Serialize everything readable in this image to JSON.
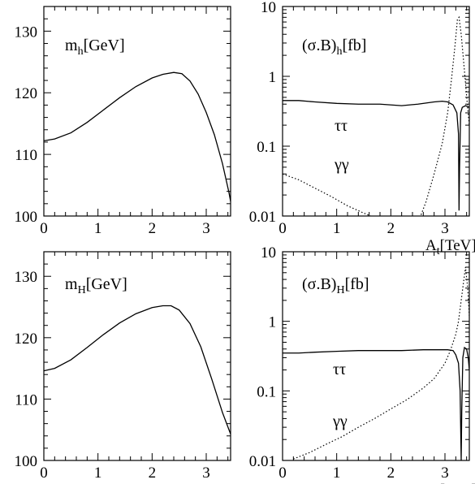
{
  "chart_data": [
    {
      "panel": "top-left",
      "type": "line",
      "title_parts": {
        "base": "m",
        "sub": "h",
        "tail": "[GeV]"
      },
      "xlim": [
        0,
        3.45
      ],
      "ylim": [
        100,
        134
      ],
      "xticks": [
        0,
        1,
        2,
        3
      ],
      "yticks": [
        100,
        110,
        120,
        130
      ],
      "xlabel": "",
      "series": [
        {
          "style": "solid",
          "x": [
            0,
            0.2,
            0.5,
            0.8,
            1.1,
            1.4,
            1.7,
            2.0,
            2.2,
            2.4,
            2.55,
            2.7,
            2.85,
            3.0,
            3.15,
            3.3,
            3.42,
            3.5
          ],
          "y": [
            112.2,
            112.5,
            113.5,
            115.2,
            117.2,
            119.2,
            121.0,
            122.4,
            123.0,
            123.3,
            123.1,
            121.9,
            119.8,
            116.8,
            113.2,
            108.5,
            103.8,
            100.0
          ]
        }
      ]
    },
    {
      "panel": "top-right",
      "type": "line",
      "title_parts": {
        "base": "(σ.B)",
        "sub": "h",
        "tail": "[fb]"
      },
      "scale": "log",
      "xlim": [
        0,
        3.45
      ],
      "ylim": [
        0.01,
        10
      ],
      "xticks": [
        0,
        1,
        2,
        3
      ],
      "yticks": [
        0.01,
        0.1,
        1,
        10
      ],
      "ytick_labels": [
        "0.01",
        "0.1",
        "1",
        "10"
      ],
      "xlabel_parts": {
        "base": "A",
        "sub": "t",
        "tail": "[TeV]"
      },
      "series_labels": [
        "ττ",
        "γγ"
      ],
      "series": [
        {
          "style": "solid",
          "x": [
            0,
            0.3,
            0.6,
            1.0,
            1.4,
            1.8,
            2.2,
            2.5,
            2.8,
            2.95,
            3.05,
            3.15,
            3.22,
            3.25,
            3.26,
            3.27,
            3.29,
            3.32,
            3.38,
            3.45
          ],
          "y": [
            0.45,
            0.45,
            0.43,
            0.41,
            0.4,
            0.4,
            0.38,
            0.4,
            0.43,
            0.44,
            0.43,
            0.39,
            0.3,
            0.15,
            0.012,
            0.05,
            0.3,
            0.36,
            0.38,
            0.36
          ]
        },
        {
          "style": "dotted",
          "x": [
            0,
            0.3,
            0.6,
            0.9,
            1.2,
            1.5,
            1.7,
            2.2,
            2.55,
            2.65,
            2.8,
            2.95,
            3.05,
            3.12,
            3.18,
            3.23,
            3.26,
            3.3,
            3.34,
            3.38,
            3.42,
            3.45
          ],
          "y": [
            0.04,
            0.033,
            0.025,
            0.019,
            0.014,
            0.011,
            0.0095,
            0.0095,
            0.01,
            0.016,
            0.04,
            0.11,
            0.3,
            0.9,
            2.5,
            6.5,
            7.0,
            4.0,
            1.8,
            0.8,
            0.35,
            0.2
          ]
        }
      ]
    },
    {
      "panel": "bottom-left",
      "type": "line",
      "title_parts": {
        "base": "m",
        "sub": "H",
        "tail": "[GeV]"
      },
      "xlim": [
        0,
        3.45
      ],
      "ylim": [
        100,
        134
      ],
      "xticks": [
        0,
        1,
        2,
        3
      ],
      "yticks": [
        100,
        110,
        120,
        130
      ],
      "xlabel": "",
      "series": [
        {
          "style": "solid",
          "x": [
            0,
            0.2,
            0.5,
            0.8,
            1.1,
            1.4,
            1.7,
            2.0,
            2.2,
            2.35,
            2.5,
            2.7,
            2.9,
            3.1,
            3.3,
            3.45
          ],
          "y": [
            114.6,
            115.0,
            116.4,
            118.4,
            120.5,
            122.4,
            123.9,
            124.9,
            125.2,
            125.2,
            124.5,
            122.3,
            118.5,
            113.3,
            107.8,
            104.3
          ]
        }
      ]
    },
    {
      "panel": "bottom-right",
      "type": "line",
      "title_parts": {
        "base": "(σ.B)",
        "sub": "H",
        "tail": "[fb]"
      },
      "scale": "log",
      "xlim": [
        0,
        3.45
      ],
      "ylim": [
        0.01,
        10
      ],
      "xticks": [
        0,
        1,
        2,
        3
      ],
      "yticks": [
        0.01,
        0.1,
        1,
        10
      ],
      "ytick_labels": [
        "0.01",
        "0.1",
        "1",
        "10"
      ],
      "xlabel_parts": {
        "base": "A",
        "sub": "t",
        "tail": "[TeV]"
      },
      "series_labels": [
        "ττ",
        "γγ"
      ],
      "series": [
        {
          "style": "solid",
          "x": [
            0,
            0.3,
            0.6,
            1.0,
            1.4,
            1.8,
            2.2,
            2.6,
            2.9,
            3.05,
            3.15,
            3.2,
            3.25,
            3.28,
            3.3,
            3.31,
            3.33,
            3.36,
            3.4,
            3.43,
            3.45
          ],
          "y": [
            0.35,
            0.35,
            0.36,
            0.37,
            0.38,
            0.38,
            0.38,
            0.39,
            0.39,
            0.39,
            0.38,
            0.33,
            0.25,
            0.1,
            0.01,
            0.05,
            0.3,
            0.42,
            0.4,
            0.3,
            0.2
          ]
        },
        {
          "style": "dotted",
          "x": [
            0.2,
            0.5,
            0.8,
            1.1,
            1.4,
            1.7,
            2.0,
            2.3,
            2.6,
            2.8,
            3.0,
            3.1,
            3.2,
            3.25,
            3.3,
            3.35,
            3.38,
            3.42,
            3.45
          ],
          "y": [
            0.0105,
            0.013,
            0.017,
            0.022,
            0.03,
            0.04,
            0.055,
            0.075,
            0.11,
            0.15,
            0.25,
            0.38,
            0.65,
            1.0,
            2.0,
            4.0,
            6.0,
            3.0,
            1.2
          ]
        }
      ]
    }
  ]
}
